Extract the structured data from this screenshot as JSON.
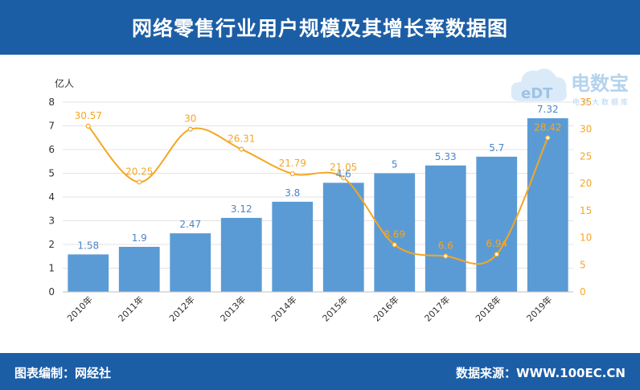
{
  "title": "网络零售行业用户规模及其增长率数据图",
  "footer_left": "图表编制：网经社",
  "footer_right": "数据来源：WWW.100EC.CN",
  "watermark": {
    "main": "电数宝",
    "sub": "电商大数据库",
    "logo": "eDT"
  },
  "colors": {
    "header": "#1c5ea6",
    "bar": "#5b9bd5",
    "line": "#f5a623",
    "bar_label": "#4a86c5"
  },
  "chart_data": {
    "type": "bar",
    "categories": [
      "2010年",
      "2011年",
      "2012年",
      "2013年",
      "2014年",
      "2015年",
      "2016年",
      "2017年",
      "2018年",
      "2019年"
    ],
    "ylabel": "亿人",
    "ylim": [
      0,
      8
    ],
    "yticks": [
      0,
      1,
      2,
      3,
      4,
      5,
      6,
      7,
      8
    ],
    "y2lim": [
      0,
      35
    ],
    "y2ticks": [
      0,
      5,
      10,
      15,
      20,
      25,
      30,
      35
    ],
    "series": [
      {
        "type": "bar",
        "axis": "left",
        "values": [
          1.58,
          1.9,
          2.47,
          3.12,
          3.8,
          4.6,
          5,
          5.33,
          5.7,
          7.32
        ]
      },
      {
        "type": "line",
        "axis": "right",
        "values": [
          30.57,
          20.25,
          30,
          26.31,
          21.79,
          21.05,
          8.69,
          6.6,
          6.94,
          28.42
        ]
      }
    ]
  }
}
